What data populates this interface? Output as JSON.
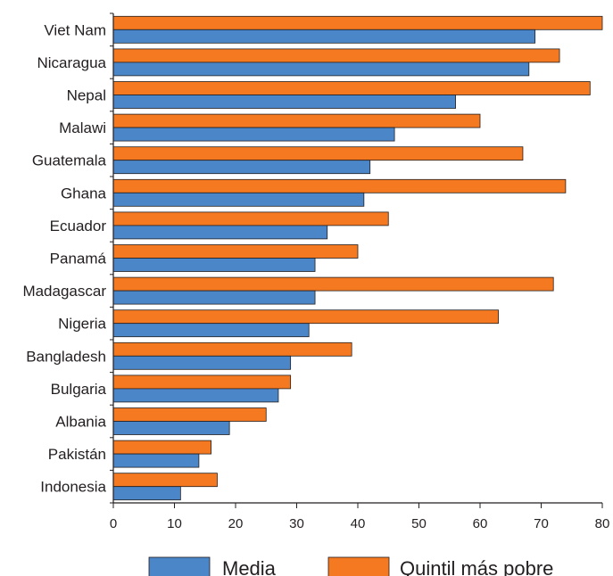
{
  "chart_data": {
    "type": "bar",
    "orientation": "horizontal",
    "categories": [
      "Viet Nam",
      "Nicaragua",
      "Nepal",
      "Malawi",
      "Guatemala",
      "Ghana",
      "Ecuador",
      "Panamá",
      "Madagascar",
      "Nigeria",
      "Bangladesh",
      "Bulgaria",
      "Albania",
      "Pakistán",
      "Indonesia"
    ],
    "series": [
      {
        "name": "Quintil más pobre",
        "color": "#f47920",
        "values": [
          80,
          73,
          78,
          60,
          67,
          74,
          45,
          40,
          72,
          63,
          39,
          29,
          25,
          16,
          17
        ]
      },
      {
        "name": "Media",
        "color": "#4a86c8",
        "values": [
          69,
          68,
          56,
          46,
          42,
          41,
          35,
          33,
          33,
          32,
          29,
          27,
          19,
          14,
          11
        ]
      }
    ],
    "xlim": [
      0,
      80
    ],
    "xticks": [
      0,
      10,
      20,
      30,
      40,
      50,
      60,
      70,
      80
    ],
    "legend_order": [
      "Media",
      "Quintil más pobre"
    ],
    "legend_position": "bottom",
    "grid": false
  }
}
